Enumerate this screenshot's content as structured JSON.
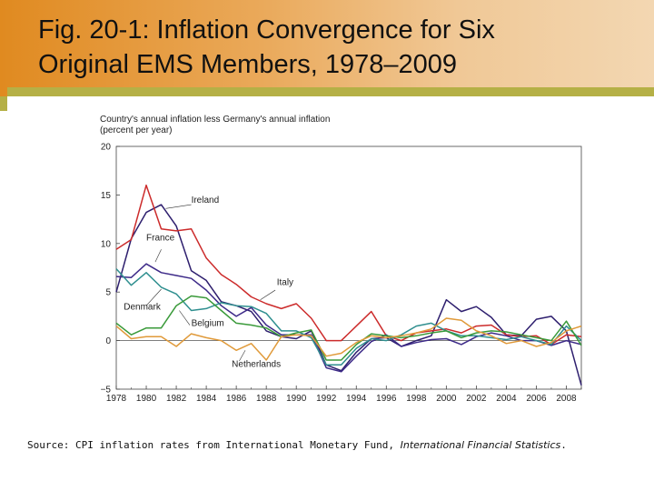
{
  "slide": {
    "title_line1": "Fig. 20-1: Inflation Convergence for Six",
    "title_line2": "Original EMS Members, 1978–2009",
    "source_prefix": "Source: CPI inflation rates from International Monetary Fund, ",
    "source_italic": "International Financial Statistics",
    "source_suffix": "."
  },
  "colors": {
    "band_start": "#e08a20",
    "band_end": "#f3d7b2",
    "accent": "#b5b046"
  },
  "chart_data": {
    "type": "line",
    "ylabel_line1": "Country's annual inflation less Germany's annual inflation",
    "ylabel_line2": "(percent per year)",
    "xlim": [
      1978,
      2009
    ],
    "ylim": [
      -5,
      20
    ],
    "yticks": [
      20,
      15,
      10,
      5,
      0,
      -5
    ],
    "ytick_labels": [
      "20",
      "15",
      "10",
      "5",
      "0",
      "−5"
    ],
    "xticks": [
      1978,
      1980,
      1982,
      1984,
      1986,
      1988,
      1990,
      1992,
      1994,
      1996,
      1998,
      2000,
      2002,
      2004,
      2006,
      2008
    ],
    "grid": false,
    "x": [
      1978,
      1979,
      1980,
      1981,
      1982,
      1983,
      1984,
      1985,
      1986,
      1987,
      1988,
      1989,
      1990,
      1991,
      1992,
      1993,
      1994,
      1995,
      1996,
      1997,
      1998,
      1999,
      2000,
      2001,
      2002,
      2003,
      2004,
      2005,
      2006,
      2007,
      2008,
      2009
    ],
    "series": [
      {
        "name": "Ireland",
        "color": "#2e1f6e",
        "values": [
          5.0,
          10.5,
          13.2,
          14.0,
          11.8,
          7.2,
          6.2,
          4.0,
          3.6,
          3.0,
          1.0,
          0.4,
          0.2,
          1.0,
          -2.5,
          -3.1,
          -1.2,
          0.2,
          0.3,
          -0.6,
          0.0,
          0.5,
          4.2,
          3.0,
          3.5,
          2.4,
          0.6,
          0.5,
          2.2,
          2.5,
          1.0,
          -4.6
        ],
        "label_pos": [
          1983,
          14.2
        ]
      },
      {
        "name": "Italy",
        "color": "#cc2b2b",
        "values": [
          9.4,
          10.4,
          16.0,
          11.5,
          11.3,
          11.5,
          8.5,
          6.8,
          5.8,
          4.5,
          3.8,
          3.3,
          3.8,
          2.3,
          0.0,
          0.0,
          1.5,
          3.0,
          0.5,
          0.0,
          0.8,
          1.0,
          1.2,
          0.8,
          1.5,
          1.6,
          0.6,
          0.4,
          0.5,
          -0.4,
          0.6,
          0.4
        ],
        "label_pos": [
          1988.7,
          5.7
        ]
      },
      {
        "name": "France",
        "color": "#3d2a88",
        "values": [
          6.6,
          6.5,
          7.9,
          7.0,
          6.7,
          6.4,
          5.2,
          3.6,
          2.5,
          3.4,
          1.6,
          0.6,
          0.6,
          0.6,
          -2.8,
          -3.2,
          -1.6,
          -0.1,
          0.6,
          -0.6,
          -0.2,
          0.1,
          0.2,
          -0.4,
          0.4,
          0.8,
          0.5,
          0.0,
          0.0,
          -0.5,
          0.0,
          -0.4
        ],
        "label_pos": [
          1980.0,
          10.3
        ]
      },
      {
        "name": "Denmark",
        "color": "#2f8f8f",
        "values": [
          7.4,
          5.7,
          7.0,
          5.5,
          4.8,
          3.1,
          3.3,
          3.9,
          3.6,
          3.5,
          2.8,
          1.0,
          1.0,
          0.3,
          -2.5,
          -2.5,
          -0.8,
          0.2,
          0.0,
          0.6,
          1.5,
          1.8,
          1.0,
          0.5,
          0.5,
          0.3,
          0.1,
          0.4,
          0.0,
          -0.4,
          1.5,
          0.0
        ],
        "label_pos": [
          1978.5,
          3.2
        ]
      },
      {
        "name": "Belgium",
        "color": "#3a9a3a",
        "values": [
          1.8,
          0.6,
          1.3,
          1.3,
          3.6,
          4.6,
          4.4,
          3.1,
          1.8,
          1.6,
          1.3,
          0.4,
          0.8,
          1.1,
          -2.0,
          -2.0,
          -0.4,
          0.7,
          0.5,
          0.3,
          0.5,
          0.8,
          1.0,
          0.3,
          0.8,
          1.0,
          0.9,
          0.6,
          0.3,
          0.0,
          2.0,
          -0.5
        ],
        "label_pos": [
          1983.0,
          1.5
        ]
      },
      {
        "name": "Netherlands",
        "color": "#e09a3a",
        "values": [
          1.5,
          0.2,
          0.4,
          0.4,
          -0.6,
          0.7,
          0.3,
          0.0,
          -1.0,
          -0.3,
          -2.0,
          0.4,
          0.6,
          0.5,
          -1.6,
          -1.3,
          -0.2,
          0.5,
          0.3,
          0.5,
          0.8,
          1.2,
          2.3,
          2.1,
          1.0,
          0.5,
          -0.3,
          0.0,
          -0.6,
          -0.2,
          1.0,
          1.5
        ],
        "label_pos": [
          1985.7,
          -2.7
        ]
      }
    ]
  }
}
